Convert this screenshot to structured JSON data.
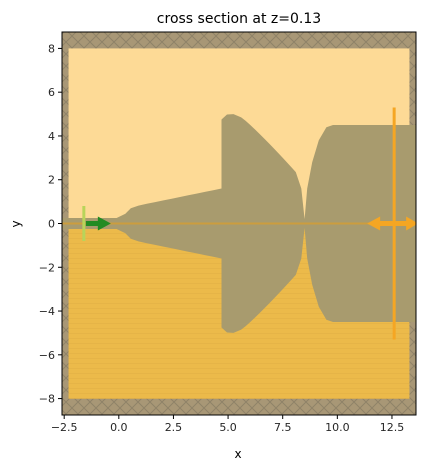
{
  "chart_data": {
    "type": "cross-section",
    "title": "cross section at z=0.13",
    "xlabel": "x",
    "ylabel": "y",
    "xlim": [
      -2.6,
      13.6
    ],
    "ylim": [
      -8.75,
      8.75
    ],
    "xticks": [
      -2.5,
      0.0,
      2.5,
      5.0,
      7.5,
      10.0,
      12.5
    ],
    "xtick_labels": [
      "−2.5",
      "0.0",
      "2.5",
      "5.0",
      "7.5",
      "10.0",
      "12.5"
    ],
    "yticks": [
      8,
      6,
      4,
      2,
      0,
      -2,
      -4,
      -6,
      -8
    ],
    "ytick_labels": [
      "8",
      "6",
      "4",
      "2",
      "0",
      "−2",
      "−4",
      "−6",
      "−8"
    ],
    "regions": {
      "simulation_box": {
        "x": [
          -2.3,
          13.3
        ],
        "y": [
          -8.0,
          8.0
        ]
      },
      "upper_medium": {
        "y": [
          0.0,
          8.0
        ],
        "color": "#fdda96"
      },
      "lower_medium": {
        "y": [
          -8.0,
          0.0
        ],
        "color": "#ecba4a"
      },
      "pml_color": "#a89776"
    },
    "structure": {
      "color": "#a89b6e",
      "input_waveguide": {
        "x": [
          -2.6,
          0.2
        ],
        "half_width": 0.25
      },
      "taper": {
        "x": [
          0.2,
          4.7
        ],
        "half_width_end": 1.6
      },
      "horn": {
        "x": [
          4.7,
          8.5
        ],
        "half_width_max": 5.0
      },
      "output_section": {
        "x": [
          8.5,
          13.3
        ],
        "half_width": 4.5
      }
    },
    "source": {
      "x": -1.6,
      "y_span": [
        -0.8,
        0.8
      ],
      "direction": "+x",
      "color": "#228b22"
    },
    "monitor": {
      "x": 12.6,
      "y_span": [
        -5.3,
        5.3
      ],
      "color": "#f5a623"
    }
  }
}
